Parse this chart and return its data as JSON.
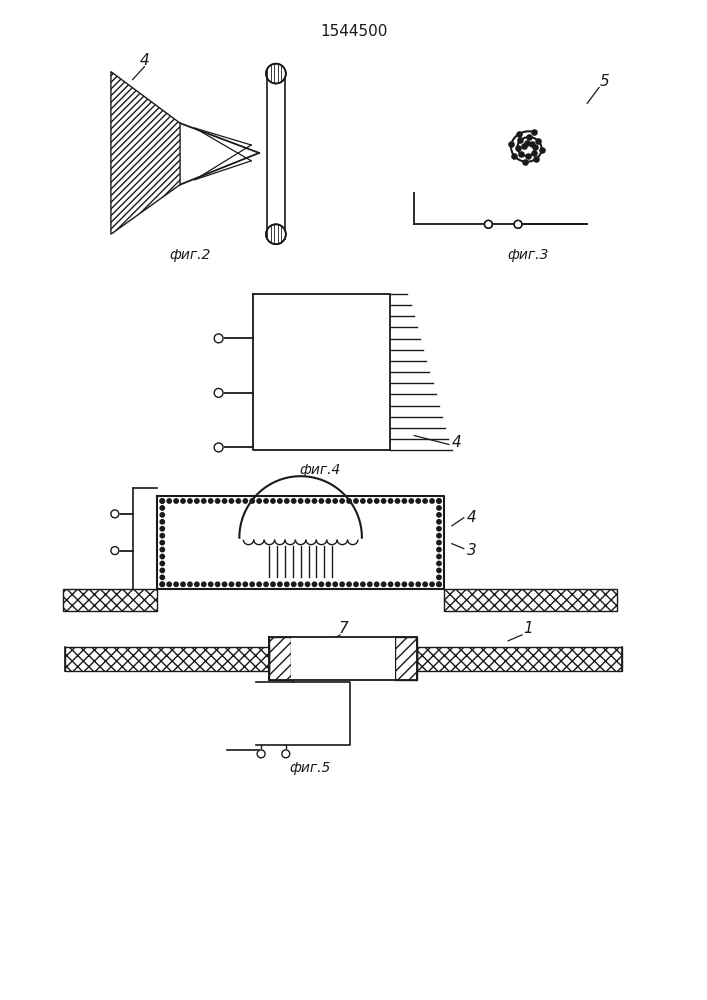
{
  "title": "1544500",
  "bg_color": "#ffffff",
  "line_color": "#1a1a1a",
  "fig2_label": "фиг.2",
  "fig3_label": "фиг.3",
  "fig4_label": "фиг.4",
  "fig5_label": "фиг.5",
  "label_4a": "4",
  "label_5": "5",
  "label_4b": "4",
  "label_3": "3",
  "label_4c": "4",
  "label_7": "7",
  "label_1": "1"
}
